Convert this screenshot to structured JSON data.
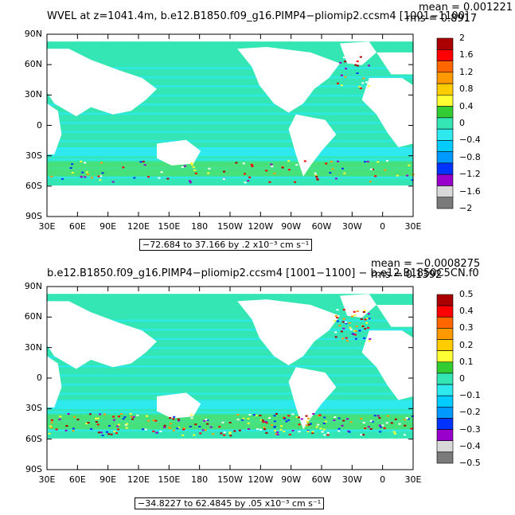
{
  "panels": [
    {
      "title": "WVEL at z=1041.4m, b.e12.B1850.f09_g16.PIMP4−pliomip2.ccsm4 [1001−1100]",
      "mean": "mean = 0.001221",
      "rms": "rms = 0.8917",
      "range_text": "−72.684 to 37.166 by .2 x10⁻³ cm s⁻¹",
      "colorbar_labels": [
        "2",
        "1.6",
        "1.2",
        "0.8",
        "0.4",
        "0",
        "−0.4",
        "−0.8",
        "−1.2",
        "−1.6",
        "−2"
      ]
    },
    {
      "title": "b.e12.B1850.f09_g16.PIMP4−pliomip2.ccsm4 [1001−1100] − b.e12.B1850C5CN.f0",
      "mean": "mean = −0.0008275",
      "rms": "rms = 0.1392",
      "range_text": "−34.8227 to 62.4845 by .05 x10⁻³ cm s⁻¹",
      "colorbar_labels": [
        "0.5",
        "0.4",
        "0.3",
        "0.2",
        "0.1",
        "0",
        "−0.1",
        "−0.2",
        "−0.3",
        "−0.4",
        "−0.5"
      ]
    }
  ],
  "lat_labels": [
    "90N",
    "60N",
    "30N",
    "0",
    "30S",
    "60S",
    "90S"
  ],
  "lon_labels": [
    "30E",
    "60E",
    "90E",
    "120E",
    "150E",
    "180",
    "150W",
    "120W",
    "90W",
    "60W",
    "30W",
    "0",
    "30E"
  ],
  "colors": {
    "ocean_main": "#33e6b3",
    "ocean_light": "#2ee9ee",
    "land": "#ffffff",
    "colorbar": [
      "#ab0000",
      "#ff0000",
      "#ff6600",
      "#ff9900",
      "#ffcc00",
      "#ffff33",
      "#33cc33",
      "#33e6b3",
      "#2ee9ee",
      "#00ccff",
      "#0099ff",
      "#0033ff",
      "#9900cc",
      "#d8d8d8",
      "#7a7a7a"
    ]
  }
}
